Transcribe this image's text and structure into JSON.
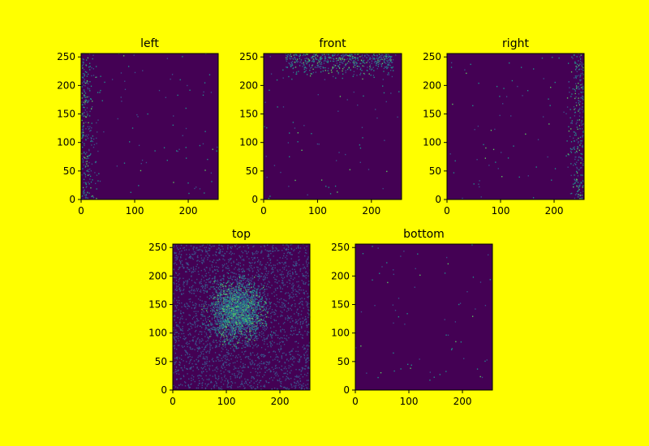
{
  "figure": {
    "background": "#ffff00"
  },
  "chart_data": [
    {
      "type": "heatmap",
      "title": "left",
      "xlim": [
        0,
        256
      ],
      "ylim": [
        0,
        256
      ],
      "xticks": [
        0,
        100,
        200
      ],
      "yticks": [
        0,
        50,
        100,
        150,
        200,
        250
      ],
      "pattern": "left-edge",
      "density": 0.012
    },
    {
      "type": "heatmap",
      "title": "front",
      "xlim": [
        0,
        256
      ],
      "ylim": [
        0,
        256
      ],
      "xticks": [
        0,
        100,
        200
      ],
      "yticks": [
        0,
        50,
        100,
        150,
        200,
        250
      ],
      "pattern": "top-edge",
      "density": 0.02
    },
    {
      "type": "heatmap",
      "title": "right",
      "xlim": [
        0,
        256
      ],
      "ylim": [
        0,
        256
      ],
      "xticks": [
        0,
        100,
        200
      ],
      "yticks": [
        0,
        50,
        100,
        150,
        200,
        250
      ],
      "pattern": "right-edge",
      "density": 0.012
    },
    {
      "type": "heatmap",
      "title": "top",
      "xlim": [
        0,
        256
      ],
      "ylim": [
        0,
        256
      ],
      "xticks": [
        0,
        100,
        200
      ],
      "yticks": [
        0,
        50,
        100,
        150,
        200,
        250
      ],
      "pattern": "center-blob",
      "density": 0.6
    },
    {
      "type": "heatmap",
      "title": "bottom",
      "xlim": [
        0,
        256
      ],
      "ylim": [
        0,
        256
      ],
      "xticks": [
        0,
        100,
        200
      ],
      "yticks": [
        0,
        50,
        100,
        150,
        200,
        250
      ],
      "pattern": "sparse",
      "density": 0.003
    }
  ],
  "colormap": {
    "name": "viridis",
    "background": "#440154",
    "low": "#3b528b",
    "mid": "#21908d",
    "high": "#5dc963"
  }
}
